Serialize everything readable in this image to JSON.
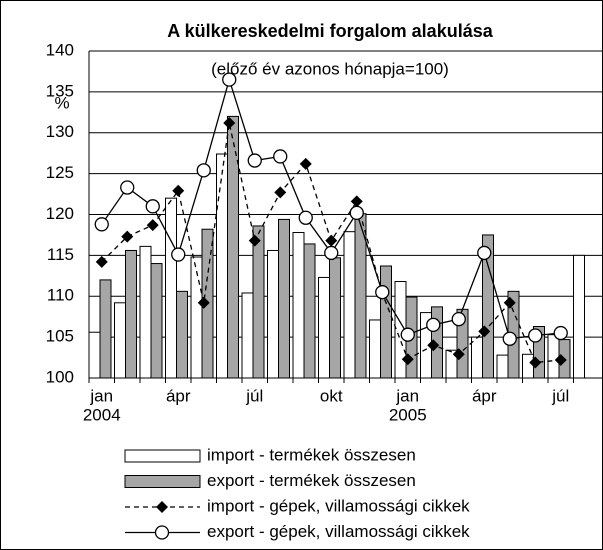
{
  "chart_data": {
    "type": "bar-line",
    "title": "A külkereskedelmi forgalom alakulása",
    "subtitle": "(előző év azonos hónapja=100)",
    "y_label": "%",
    "categories": [
      "jan",
      null,
      null,
      "ápr",
      null,
      null,
      "júl",
      null,
      null,
      "okt",
      null,
      null,
      "jan",
      null,
      null,
      "ápr",
      null,
      null,
      "júl",
      null
    ],
    "years": [
      "2004",
      "2005"
    ],
    "series": [
      {
        "name": "import - termékek összesen",
        "kind": "bar",
        "color": "#ffffff",
        "values": [
          105.6,
          109.2,
          116.1,
          122,
          114.8,
          127.4,
          110.4,
          115.6,
          117.8,
          112.3,
          117.9,
          107.1,
          111.8,
          108,
          103.4,
          105,
          102.8,
          102.9,
          105.3,
          115
        ]
      },
      {
        "name": "export - termékek összesen",
        "kind": "bar",
        "color": "#a6a6a6",
        "values": [
          112,
          115.6,
          114,
          110.6,
          118.2,
          132,
          118.6,
          119.4,
          116.4,
          114.7,
          120.1,
          113.7,
          109.9,
          108.7,
          108.4,
          117.5,
          110.6,
          106.3,
          104.7,
          null
        ]
      },
      {
        "name": "import - gépek, villamossági cikkek",
        "kind": "line",
        "dash": true,
        "marker": "diamond",
        "color": "#000000",
        "values": [
          114.2,
          117.3,
          118.7,
          122.9,
          109.2,
          131.2,
          116.8,
          122.7,
          126.2,
          116.8,
          121.6,
          110.4,
          102.3,
          104,
          102.9,
          105.7,
          109.2,
          101.9,
          102.2,
          null
        ]
      },
      {
        "name": "export - gépek, villamossági cikkek",
        "kind": "line",
        "dash": false,
        "marker": "circle",
        "color": "#000000",
        "values": [
          118.8,
          123.3,
          121,
          115.1,
          125.4,
          136.5,
          126.6,
          127.1,
          119.6,
          115.3,
          120.2,
          110.5,
          105.3,
          106.5,
          107.2,
          115.3,
          104.8,
          105.2,
          105.5,
          null
        ]
      }
    ],
    "ylim": [
      100,
      140
    ],
    "yticks": [
      100,
      105,
      110,
      115,
      120,
      125,
      130,
      135,
      140
    ],
    "grid": true
  }
}
